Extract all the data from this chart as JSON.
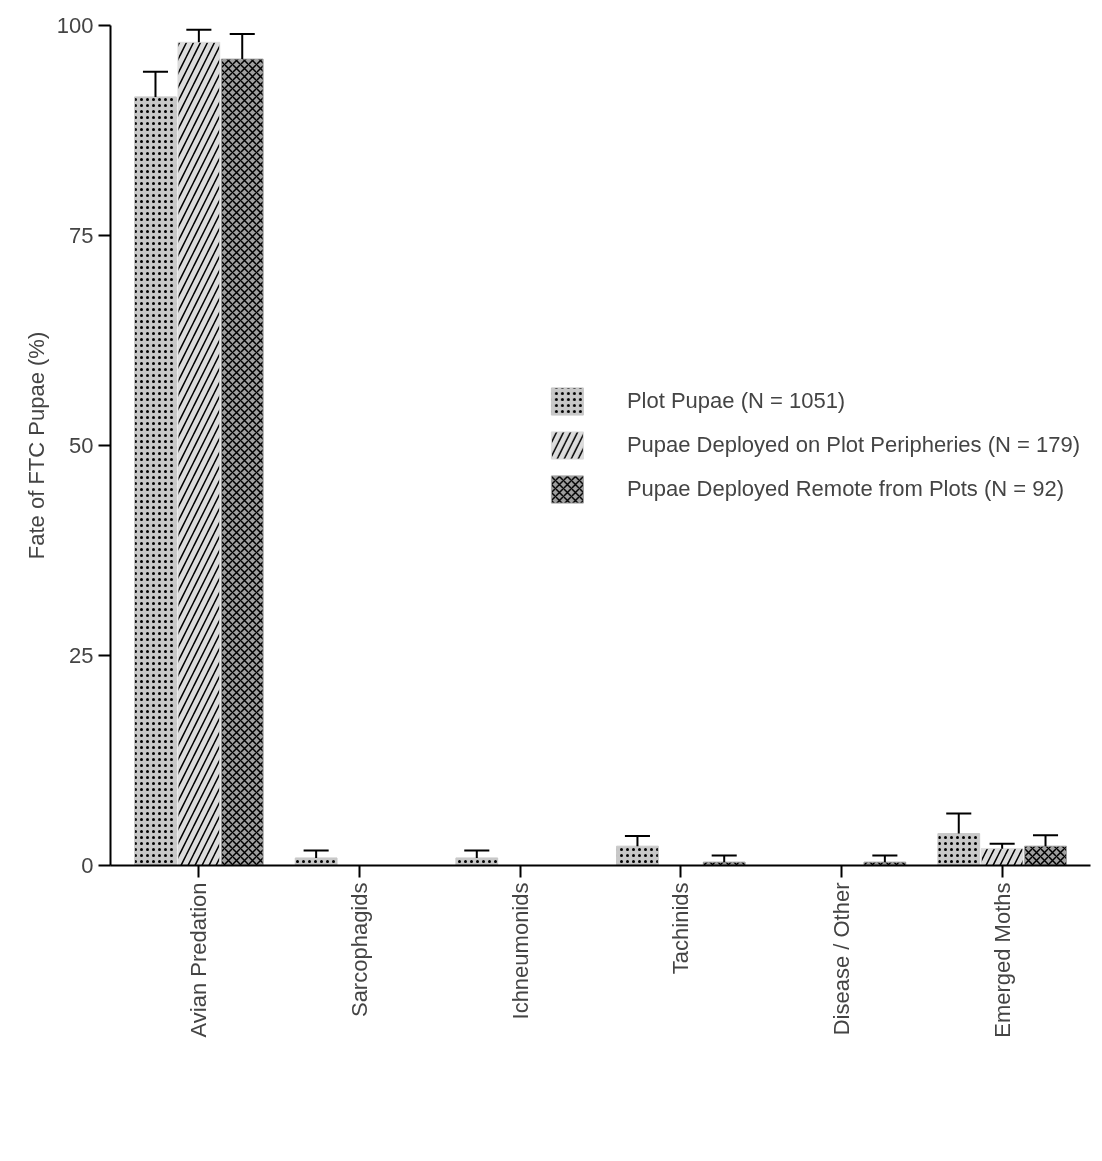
{
  "chart_data": {
    "type": "bar",
    "ylabel": "Fate of FTC Pupae (%)",
    "categories": [
      "Avian Predation",
      "Sarcophagids",
      "Ichneumonids",
      "Tachinids",
      "Disease / Other",
      "Emerged Moths"
    ],
    "series": [
      {
        "name": "Plot Pupae (N = 1051)",
        "color": "#c8c8c8",
        "values": [
          91.5,
          0.9,
          0.9,
          2.3,
          0,
          3.8
        ],
        "errors": [
          [
            91.5,
            94.5
          ],
          [
            0.9,
            1.8
          ],
          [
            0.9,
            1.8
          ],
          [
            2.3,
            3.5
          ],
          null,
          [
            3.8,
            6.2
          ]
        ]
      },
      {
        "name": "Pupae Deployed on Plot Peripheries (N = 179)",
        "color": "#dcdcdc",
        "values": [
          98,
          0,
          0,
          0,
          0,
          2
        ],
        "errors": [
          [
            98,
            99.5
          ],
          null,
          null,
          null,
          null,
          [
            2,
            2.6
          ]
        ]
      },
      {
        "name": "Pupae Deployed Remote from Plots (N = 92)",
        "color": "#a0a0a0",
        "values": [
          96,
          0,
          0,
          0.4,
          0.4,
          2.3
        ],
        "errors": [
          [
            96,
            99
          ],
          null,
          null,
          [
            0.4,
            1.2
          ],
          [
            0.4,
            1.2
          ],
          [
            2.3,
            3.6
          ]
        ]
      }
    ],
    "ylim": [
      0,
      100
    ],
    "yticks": [
      0,
      25,
      50,
      75,
      100
    ],
    "grid": false,
    "legend": "right"
  }
}
